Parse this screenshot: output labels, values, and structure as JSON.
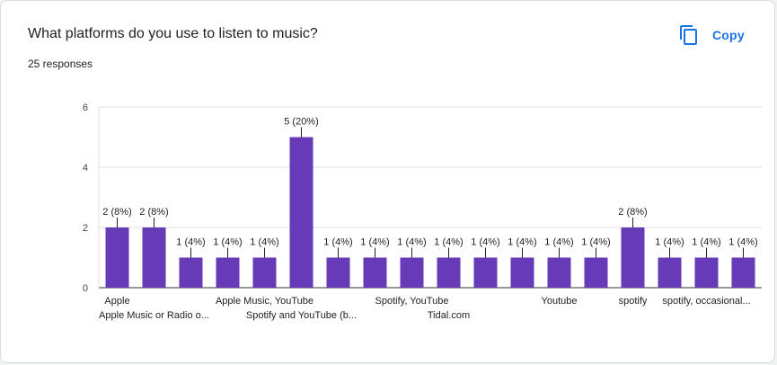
{
  "card": {
    "title": "What platforms do you use to listen to music?",
    "responses": "25 responses",
    "copy_label": "Copy",
    "copy_icon": "copy-icon"
  },
  "colors": {
    "bar": "#673ab7",
    "accent": "#1a73e8",
    "grid": "#e0e0e0"
  },
  "chart_data": {
    "type": "bar",
    "title": "What platforms do you use to listen to music?",
    "xlabel": "",
    "ylabel": "",
    "ylim": [
      0,
      6
    ],
    "yticks": [
      0,
      2,
      4,
      6
    ],
    "grid": true,
    "categories": [
      "Apple",
      "Apple Music or Radio o...",
      "",
      "",
      "Apple Music, YouTube",
      "Spotify and YouTube (b...",
      "",
      "",
      "Spotify, YouTube",
      "Tidal.com",
      "",
      "",
      "Youtube",
      "",
      "spotify",
      "",
      "spotify, occasional...",
      ""
    ],
    "values": [
      2,
      2,
      1,
      1,
      1,
      5,
      1,
      1,
      1,
      1,
      1,
      1,
      1,
      1,
      2,
      1,
      1,
      1
    ],
    "data_labels": [
      "2 (8%)",
      "2 (8%)",
      "1 (4%)",
      "1 (4%)",
      "1 (4%)",
      "5 (20%)",
      "1 (4%)",
      "1 (4%)",
      "1 (4%)",
      "1 (4%)",
      "1 (4%)",
      "1 (4%)",
      "1 (4%)",
      "1 (4%)",
      "2 (8%)",
      "1 (4%)",
      "1 (4%)",
      "1 (4%)"
    ]
  }
}
